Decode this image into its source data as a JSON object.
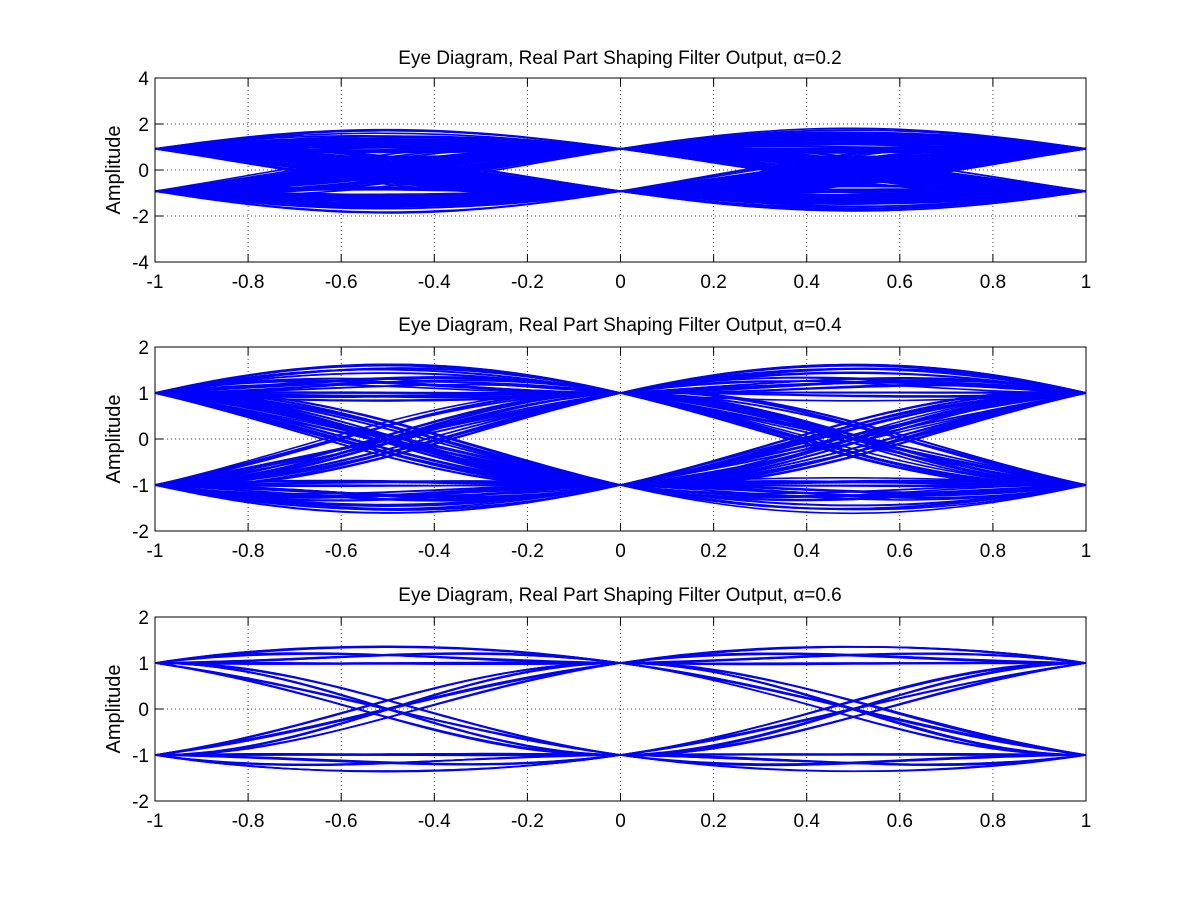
{
  "figure": {
    "background": "#ffffff",
    "trace_color": "#0000ff"
  },
  "chart_data": [
    {
      "type": "line",
      "title_prefix": "Eye Diagram, Real Part Shaping Filter Output, ",
      "title_symbol": "α",
      "title_suffix": "=0.2",
      "alpha": 0.2,
      "xlabel": "",
      "ylabel": "Amplitude",
      "xlim": [
        -1,
        1
      ],
      "ylim": [
        -4,
        4
      ],
      "xticks": [
        -1,
        -0.8,
        -0.6,
        -0.4,
        -0.2,
        0,
        0.2,
        0.4,
        0.6,
        0.8,
        1
      ],
      "xtick_labels": [
        "-1",
        "-0.8",
        "-0.6",
        "-0.4",
        "-0.2",
        "0",
        "0.2",
        "0.4",
        "0.6",
        "0.8",
        "1"
      ],
      "yticks": [
        -4,
        -2,
        0,
        2,
        4
      ],
      "ytick_labels": [
        "-4",
        "-2",
        "0",
        "2",
        "4"
      ],
      "grid": true,
      "symbol_levels": [
        -1,
        1
      ],
      "eye_opening_at_0": [
        -0.85,
        0.85
      ],
      "envelope_max": 1.95,
      "envelope_min": -1.95
    },
    {
      "type": "line",
      "title_prefix": "Eye Diagram, Real Part Shaping Filter Output, ",
      "title_symbol": "α",
      "title_suffix": "=0.4",
      "alpha": 0.4,
      "xlabel": "",
      "ylabel": "Amplitude",
      "xlim": [
        -1,
        1
      ],
      "ylim": [
        -2,
        2
      ],
      "xticks": [
        -1,
        -0.8,
        -0.6,
        -0.4,
        -0.2,
        0,
        0.2,
        0.4,
        0.6,
        0.8,
        1
      ],
      "xtick_labels": [
        "-1",
        "-0.8",
        "-0.6",
        "-0.4",
        "-0.2",
        "0",
        "0.2",
        "0.4",
        "0.6",
        "0.8",
        "1"
      ],
      "yticks": [
        -2,
        -1,
        0,
        1,
        2
      ],
      "ytick_labels": [
        "-2",
        "-1",
        "0",
        "1",
        "2"
      ],
      "grid": true,
      "symbol_levels": [
        -1,
        1
      ],
      "eye_opening_at_0": [
        -0.75,
        0.75
      ],
      "envelope_max": 1.55,
      "envelope_min": -1.55
    },
    {
      "type": "line",
      "title_prefix": "Eye Diagram, Real Part Shaping Filter Output, ",
      "title_symbol": "α",
      "title_suffix": "=0.6",
      "alpha": 0.6,
      "xlabel": "",
      "ylabel": "Amplitude",
      "xlim": [
        -1,
        1
      ],
      "ylim": [
        -2,
        2
      ],
      "xticks": [
        -1,
        -0.8,
        -0.6,
        -0.4,
        -0.2,
        0,
        0.2,
        0.4,
        0.6,
        0.8,
        1
      ],
      "xtick_labels": [
        "-1",
        "-0.8",
        "-0.6",
        "-0.4",
        "-0.2",
        "0",
        "0.2",
        "0.4",
        "0.6",
        "0.8",
        "1"
      ],
      "yticks": [
        -2,
        -1,
        0,
        1,
        2
      ],
      "ytick_labels": [
        "-2",
        "-1",
        "0",
        "1",
        "2"
      ],
      "grid": true,
      "symbol_levels": [
        -1,
        1
      ],
      "eye_opening_at_0": [
        -0.85,
        0.85
      ],
      "envelope_max": 1.25,
      "envelope_min": -1.25
    }
  ]
}
